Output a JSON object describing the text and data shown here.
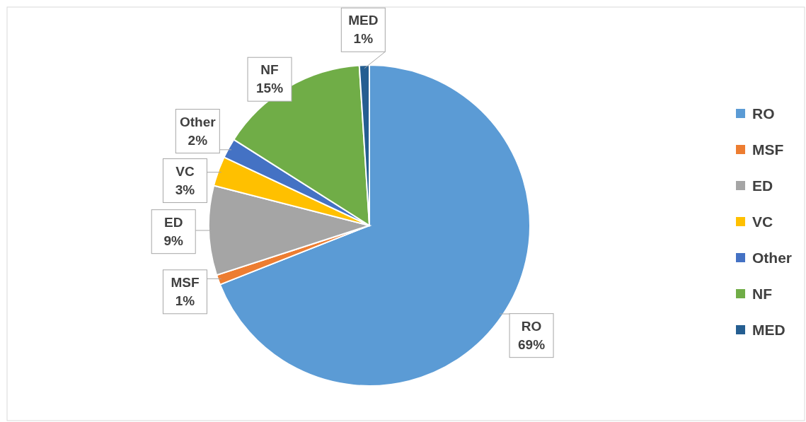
{
  "chart_data": {
    "type": "pie",
    "categories": [
      "RO",
      "MSF",
      "ED",
      "VC",
      "Other",
      "NF",
      "MED"
    ],
    "values": [
      69,
      1,
      9,
      3,
      2,
      15,
      1
    ],
    "value_labels": [
      "69%",
      "1%",
      "9%",
      "3%",
      "2%",
      "15%",
      "1%"
    ],
    "colors": [
      "#5b9bd5",
      "#ed7d31",
      "#a5a5a5",
      "#ffc000",
      "#4472c4",
      "#70ad47",
      "#255e91"
    ],
    "legend": "right"
  }
}
